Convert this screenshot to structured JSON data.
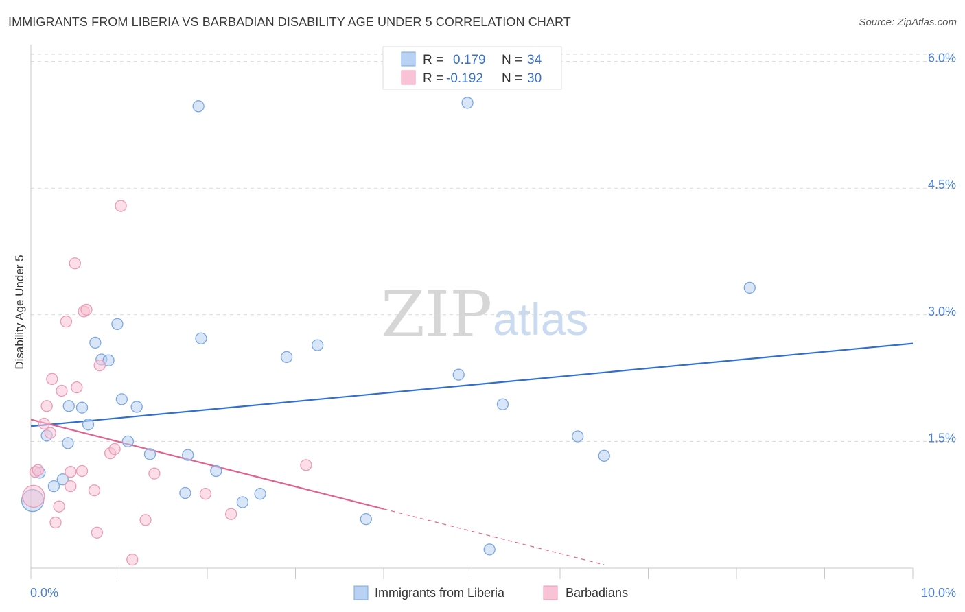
{
  "header": {
    "title": "IMMIGRANTS FROM LIBERIA VS BARBADIAN DISABILITY AGE UNDER 5 CORRELATION CHART",
    "source": "Source: ZipAtlas.com"
  },
  "watermark": {
    "zip": "ZIP",
    "atlas": "atlas"
  },
  "colors": {
    "blue": "#5b8fd8",
    "blue_fill": "#b9d2f3",
    "pink": "#e8709a",
    "pink_fill": "#f8c3d4",
    "tick_blue": "#4a7fd0",
    "grid": "#d9d9d9"
  },
  "legend": {
    "rows": [
      {
        "r_label": "R =",
        "r_value": "0.179",
        "n_label": "N =",
        "n_value": "34"
      },
      {
        "r_label": "R =",
        "r_value": "-0.192",
        "n_label": "N =",
        "n_value": "30"
      }
    ]
  },
  "bottom_legend": {
    "items": [
      "Immigrants from Liberia",
      "Barbadians"
    ]
  },
  "chart_data": {
    "type": "scatter",
    "title": "IMMIGRANTS FROM LIBERIA VS BARBADIAN DISABILITY AGE UNDER 5 CORRELATION CHART",
    "xlabel": "",
    "ylabel": "Disability Age Under 5",
    "xlim": [
      0,
      10
    ],
    "ylim": [
      0,
      6.2
    ],
    "x_tick_labels": [
      "0.0%",
      "10.0%"
    ],
    "y_ticks": [
      1.5,
      3.0,
      4.5,
      6.0
    ],
    "y_tick_labels": [
      "1.5%",
      "3.0%",
      "4.5%",
      "6.0%"
    ],
    "grid": true,
    "legend_position": "top-center",
    "series": [
      {
        "name": "Immigrants from Liberia",
        "color": "#5b8fd8",
        "points": [
          [
            0.02,
            0.8
          ],
          [
            0.1,
            1.13
          ],
          [
            0.18,
            1.57
          ],
          [
            0.26,
            0.97
          ],
          [
            0.36,
            1.05
          ],
          [
            0.42,
            1.48
          ],
          [
            0.43,
            1.92
          ],
          [
            0.58,
            1.9
          ],
          [
            0.65,
            1.7
          ],
          [
            0.73,
            2.67
          ],
          [
            0.8,
            2.47
          ],
          [
            0.88,
            2.46
          ],
          [
            0.98,
            2.89
          ],
          [
            1.03,
            2.0
          ],
          [
            1.1,
            1.5
          ],
          [
            1.2,
            1.91
          ],
          [
            1.35,
            1.35
          ],
          [
            1.75,
            0.89
          ],
          [
            1.78,
            1.34
          ],
          [
            1.9,
            5.47
          ],
          [
            1.93,
            2.72
          ],
          [
            2.1,
            1.15
          ],
          [
            2.4,
            0.78
          ],
          [
            2.6,
            0.88
          ],
          [
            2.9,
            2.5
          ],
          [
            3.25,
            2.64
          ],
          [
            3.8,
            0.58
          ],
          [
            4.85,
            2.29
          ],
          [
            4.95,
            5.51
          ],
          [
            5.2,
            0.22
          ],
          [
            5.35,
            1.94
          ],
          [
            6.2,
            1.56
          ],
          [
            6.5,
            1.33
          ],
          [
            8.15,
            3.32
          ]
        ],
        "trend": {
          "x": [
            0,
            10
          ],
          "y": [
            1.68,
            2.66
          ]
        }
      },
      {
        "name": "Barbadians",
        "color": "#e8709a",
        "points": [
          [
            0.03,
            0.85
          ],
          [
            0.05,
            1.14
          ],
          [
            0.08,
            1.16
          ],
          [
            0.15,
            1.71
          ],
          [
            0.18,
            1.92
          ],
          [
            0.22,
            1.6
          ],
          [
            0.24,
            2.24
          ],
          [
            0.28,
            0.54
          ],
          [
            0.32,
            0.73
          ],
          [
            0.35,
            2.1
          ],
          [
            0.4,
            2.92
          ],
          [
            0.45,
            0.97
          ],
          [
            0.45,
            1.14
          ],
          [
            0.5,
            3.61
          ],
          [
            0.52,
            2.14
          ],
          [
            0.58,
            1.15
          ],
          [
            0.6,
            3.04
          ],
          [
            0.63,
            3.06
          ],
          [
            0.72,
            0.92
          ],
          [
            0.75,
            0.42
          ],
          [
            0.78,
            2.4
          ],
          [
            0.9,
            1.36
          ],
          [
            0.95,
            1.41
          ],
          [
            1.02,
            4.29
          ],
          [
            1.15,
            0.1
          ],
          [
            1.3,
            0.57
          ],
          [
            1.4,
            1.12
          ],
          [
            1.98,
            0.88
          ],
          [
            2.27,
            0.64
          ],
          [
            3.12,
            1.22
          ]
        ],
        "trend": {
          "x": [
            0,
            4.0
          ],
          "y": [
            1.76,
            0.7
          ]
        },
        "trend_dashed": {
          "x": [
            4.0,
            6.5
          ],
          "y": [
            0.7,
            0.04
          ]
        }
      }
    ]
  }
}
